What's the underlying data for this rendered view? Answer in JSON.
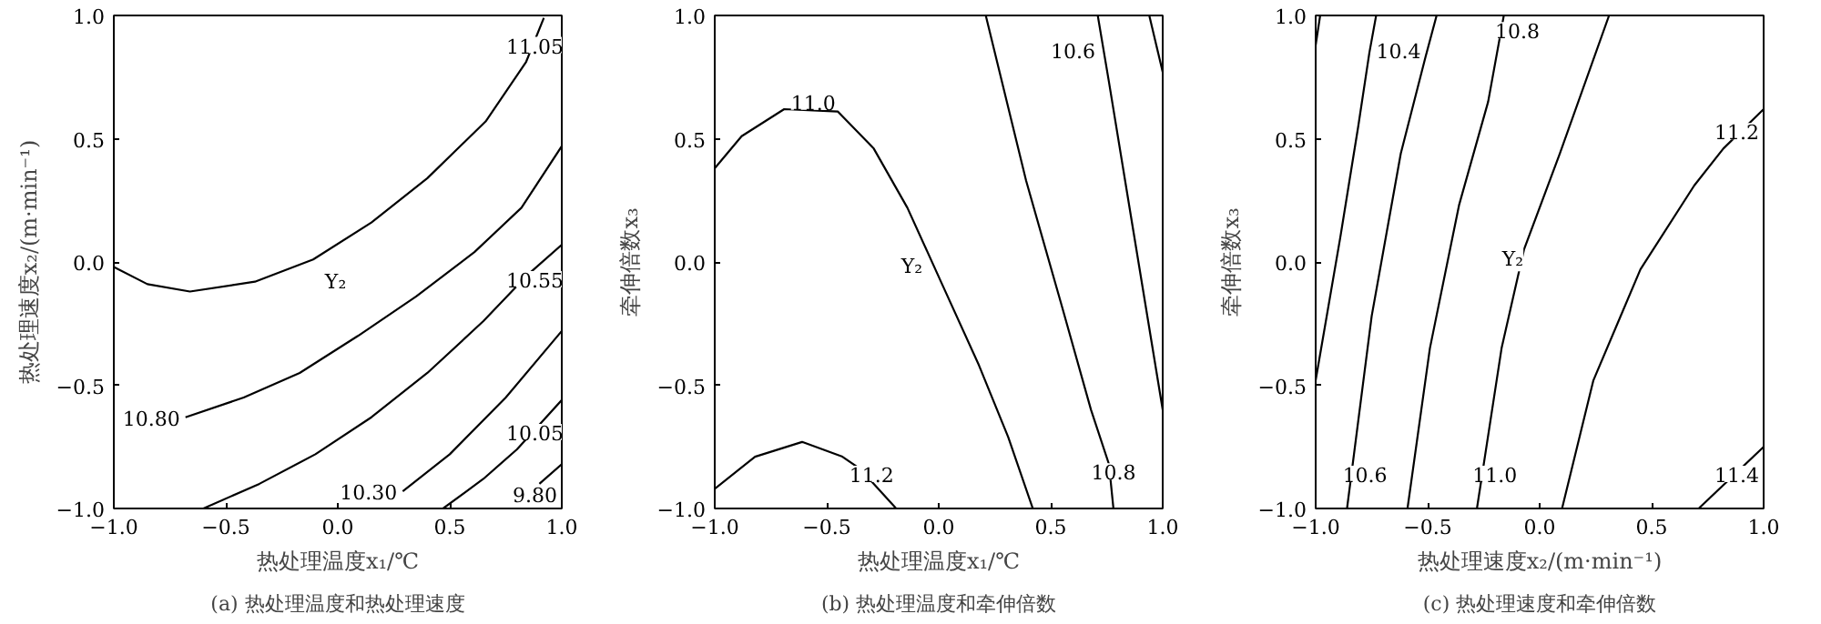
{
  "chart_data": [
    {
      "type": "line",
      "title": "(a) 热处理温度和热处理速度",
      "xlabel": "热处理温度x₁/℃",
      "ylabel": "热处理速度x₂/(m·min⁻¹)",
      "xlim": [
        -1,
        1
      ],
      "ylim": [
        -1,
        1
      ],
      "xticks": [
        {
          "value": -1,
          "label": "−1.0"
        },
        {
          "value": -0.5,
          "label": "−0.5"
        },
        {
          "value": 0,
          "label": "0.0"
        },
        {
          "value": 0.5,
          "label": "0.5"
        },
        {
          "value": 1,
          "label": "1.0"
        }
      ],
      "yticks": [
        {
          "value": -1,
          "label": "−1.0"
        },
        {
          "value": -0.5,
          "label": "−0.5"
        },
        {
          "value": 0,
          "label": "0.0"
        },
        {
          "value": 0.5,
          "label": "0.5"
        },
        {
          "value": 1,
          "label": "1.0"
        }
      ],
      "series": [
        {
          "color": "#000000",
          "x": [
            -1,
            -0.85,
            -0.66,
            -0.37,
            -0.11,
            0.15,
            0.4,
            0.66,
            0.84,
            0.92
          ],
          "values": [
            -0.02,
            -0.09,
            -0.12,
            -0.08,
            0.01,
            0.16,
            0.34,
            0.57,
            0.81,
            0.99
          ]
        },
        {
          "color": "#000000",
          "x": [
            -0.68,
            -0.42,
            -0.17,
            0.09,
            0.35,
            0.61,
            0.82,
            1
          ],
          "values": [
            -0.63,
            -0.55,
            -0.45,
            -0.3,
            -0.14,
            0.04,
            0.22,
            0.47
          ]
        },
        {
          "color": "#000000",
          "x": [
            -0.6,
            -0.35,
            -0.1,
            0.15,
            0.4,
            0.65,
            0.85,
            1
          ],
          "values": [
            -1,
            -0.9,
            -0.78,
            -0.63,
            -0.45,
            -0.24,
            -0.05,
            0.07
          ]
        },
        {
          "color": "#000000",
          "x": [
            0.29,
            0.5,
            0.75,
            1
          ],
          "values": [
            -0.93,
            -0.78,
            -0.55,
            -0.28
          ]
        },
        {
          "color": "#000000",
          "x": [
            0.47,
            0.65,
            0.8,
            1
          ],
          "values": [
            -1,
            -0.88,
            -0.76,
            -0.56
          ]
        },
        {
          "color": "#000000",
          "x": [
            0.9,
            1
          ],
          "values": [
            -0.9,
            -0.82
          ]
        }
      ],
      "annotations": [
        {
          "text": "11.05",
          "x": 0.88,
          "y": 0.88
        },
        {
          "text": "10.80",
          "x": -0.68,
          "y": -0.63
        },
        {
          "text": "10.55",
          "x": 0.88,
          "y": -0.07
        },
        {
          "text": "10.30",
          "x": 0.29,
          "y": -0.93
        },
        {
          "text": "10.05",
          "x": 0.88,
          "y": -0.69
        },
        {
          "text": "9.80",
          "x": 0.88,
          "y": -0.94
        },
        {
          "text": "Y₂",
          "x": -0.01,
          "y": -0.08
        }
      ]
    },
    {
      "type": "line",
      "title": "(b) 热处理温度和牵伸倍数",
      "xlabel": "热处理温度x₁/℃",
      "ylabel": "牵伸倍数x₃",
      "xlim": [
        -1,
        1
      ],
      "ylim": [
        -1,
        1
      ],
      "xticks": [
        {
          "value": -1,
          "label": "−1.0"
        },
        {
          "value": -0.5,
          "label": "−0.5"
        },
        {
          "value": 0,
          "label": "0.0"
        },
        {
          "value": 0.5,
          "label": "0.5"
        },
        {
          "value": 1,
          "label": "1.0"
        }
      ],
      "yticks": [
        {
          "value": -1,
          "label": "−1.0"
        },
        {
          "value": -0.5,
          "label": "−0.5"
        },
        {
          "value": 0,
          "label": "0.0"
        },
        {
          "value": 0.5,
          "label": "0.5"
        },
        {
          "value": 1,
          "label": "1.0"
        }
      ],
      "series": [
        {
          "color": "#000000",
          "x": [
            -1,
            -0.88,
            -0.69,
            -0.45,
            -0.29,
            -0.14,
            0.02,
            0.18,
            0.31,
            0.42
          ],
          "values": [
            0.38,
            0.51,
            0.62,
            0.61,
            0.46,
            0.22,
            -0.1,
            -0.42,
            -0.71,
            -1
          ]
        },
        {
          "color": "#000000",
          "x": [
            -1,
            -0.82,
            -0.61,
            -0.43,
            -0.35,
            -0.19
          ],
          "values": [
            -0.92,
            -0.79,
            -0.73,
            -0.79,
            -0.84,
            -1
          ]
        },
        {
          "color": "#000000",
          "x": [
            0.21,
            0.39,
            0.55,
            0.68,
            0.76,
            0.78
          ],
          "values": [
            1,
            0.33,
            -0.18,
            -0.6,
            -0.82,
            -1
          ]
        },
        {
          "color": "#000000",
          "x": [
            0.71,
            0.76,
            0.87,
            1
          ],
          "values": [
            1,
            0.73,
            0.12,
            -0.6
          ]
        },
        {
          "color": "#000000",
          "x": [
            0.94,
            1
          ],
          "values": [
            1,
            0.77
          ]
        }
      ],
      "annotations": [
        {
          "text": "11.0",
          "x": -0.56,
          "y": 0.65
        },
        {
          "text": "11.2",
          "x": -0.3,
          "y": -0.86
        },
        {
          "text": "10.8",
          "x": 0.78,
          "y": -0.85
        },
        {
          "text": "10.6",
          "x": 0.6,
          "y": 0.86
        },
        {
          "text": "Y₂",
          "x": -0.12,
          "y": -0.02
        }
      ]
    },
    {
      "type": "line",
      "title": "(c) 热处理速度和牵伸倍数",
      "xlabel": "热处理速度x₂/(m·min⁻¹)",
      "ylabel": "牵伸倍数x₃",
      "xlim": [
        -1,
        1
      ],
      "ylim": [
        -1,
        1
      ],
      "xticks": [
        {
          "value": -1,
          "label": "−1.0"
        },
        {
          "value": -0.5,
          "label": "−0.5"
        },
        {
          "value": 0,
          "label": "0.0"
        },
        {
          "value": 0.5,
          "label": "0.5"
        },
        {
          "value": 1,
          "label": "1.0"
        }
      ],
      "yticks": [
        {
          "value": -1,
          "label": "−1.0"
        },
        {
          "value": -0.5,
          "label": "−0.5"
        },
        {
          "value": 0,
          "label": "0.0"
        },
        {
          "value": 0.5,
          "label": "0.5"
        },
        {
          "value": 1,
          "label": "1.0"
        }
      ],
      "series": [
        {
          "color": "#000000",
          "x": [
            -1,
            -0.98
          ],
          "values": [
            0.88,
            1
          ]
        },
        {
          "color": "#000000",
          "x": [
            -1,
            -0.89,
            -0.81,
            -0.76,
            -0.73
          ],
          "values": [
            -0.48,
            0.1,
            0.55,
            0.85,
            1
          ]
        },
        {
          "color": "#000000",
          "x": [
            -0.86,
            -0.75,
            -0.62,
            -0.51,
            -0.46
          ],
          "values": [
            -1,
            -0.22,
            0.44,
            0.83,
            1
          ]
        },
        {
          "color": "#000000",
          "x": [
            -0.59,
            -0.49,
            -0.36,
            -0.23,
            -0.16
          ],
          "values": [
            -1,
            -0.35,
            0.23,
            0.65,
            1
          ]
        },
        {
          "color": "#000000",
          "x": [
            -0.28,
            -0.17,
            -0.07,
            0.09,
            0.31
          ],
          "values": [
            -1,
            -0.35,
            0.05,
            0.44,
            1
          ]
        },
        {
          "color": "#000000",
          "x": [
            0.1,
            0.24,
            0.45,
            0.69,
            0.82,
            1
          ],
          "values": [
            -1,
            -0.48,
            -0.03,
            0.31,
            0.46,
            0.62
          ]
        },
        {
          "color": "#000000",
          "x": [
            0.71,
            1
          ],
          "values": [
            -1,
            -0.75
          ]
        }
      ],
      "annotations": [
        {
          "text": "10.4",
          "x": -0.63,
          "y": 0.86
        },
        {
          "text": "10.6",
          "x": -0.78,
          "y": -0.86
        },
        {
          "text": "10.8",
          "x": -0.1,
          "y": 0.94
        },
        {
          "text": "11.0",
          "x": -0.2,
          "y": -0.86
        },
        {
          "text": "11.2",
          "x": 0.88,
          "y": 0.53
        },
        {
          "text": "11.4",
          "x": 0.88,
          "y": -0.86
        },
        {
          "text": "Y₂",
          "x": -0.12,
          "y": 0.01
        }
      ]
    }
  ]
}
